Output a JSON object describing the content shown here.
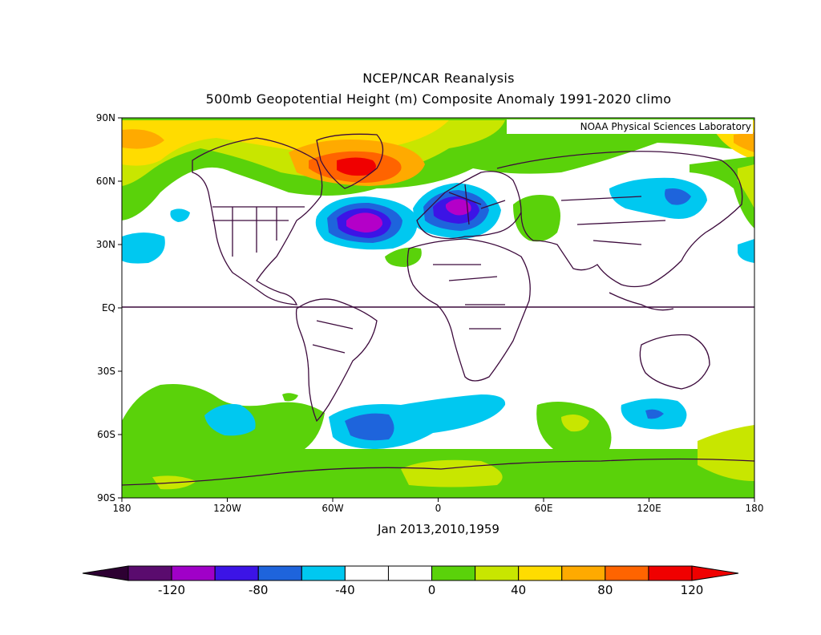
{
  "title": "NCEP/NCAR Reanalysis",
  "subtitle": "500mb Geopotential Height (m) Composite Anomaly 1991-2020 climo",
  "credit": "NOAA Physical Sciences Laboratory",
  "footer": "Jan 2013,2010,1959",
  "lat_labels": [
    "90N",
    "60N",
    "30N",
    "EQ",
    "30S",
    "60S",
    "90S"
  ],
  "lon_labels": [
    "180",
    "120W",
    "60W",
    "0",
    "60E",
    "120E",
    "180"
  ],
  "colorbar": {
    "ticks": [
      "-120",
      "-80",
      "-40",
      "0",
      "40",
      "80",
      "120"
    ],
    "colors": [
      "#5a0b6e",
      "#a000c8",
      "#3c14e6",
      "#1e64dc",
      "#00c8f0",
      "#ffffff",
      "#ffffff",
      "#5ad20a",
      "#c8e600",
      "#ffdc00",
      "#ffaa00",
      "#ff6400",
      "#f00000"
    ],
    "under_color": "#2d0032",
    "over_color": "#f00000"
  },
  "legend_colors": {
    "m120": "#5a0b6e",
    "m100": "#a000c8",
    "m80": "#b400c8",
    "m60": "#3c14e6",
    "m40": "#1e64dc",
    "m20": "#00c8f0",
    "p20": "#5ad20a",
    "p40": "#c8e600",
    "p60": "#ffdc00",
    "p80": "#ffaa00",
    "p100": "#ff6400",
    "p120": "#f00000",
    "coast": "#3c0a3c"
  }
}
